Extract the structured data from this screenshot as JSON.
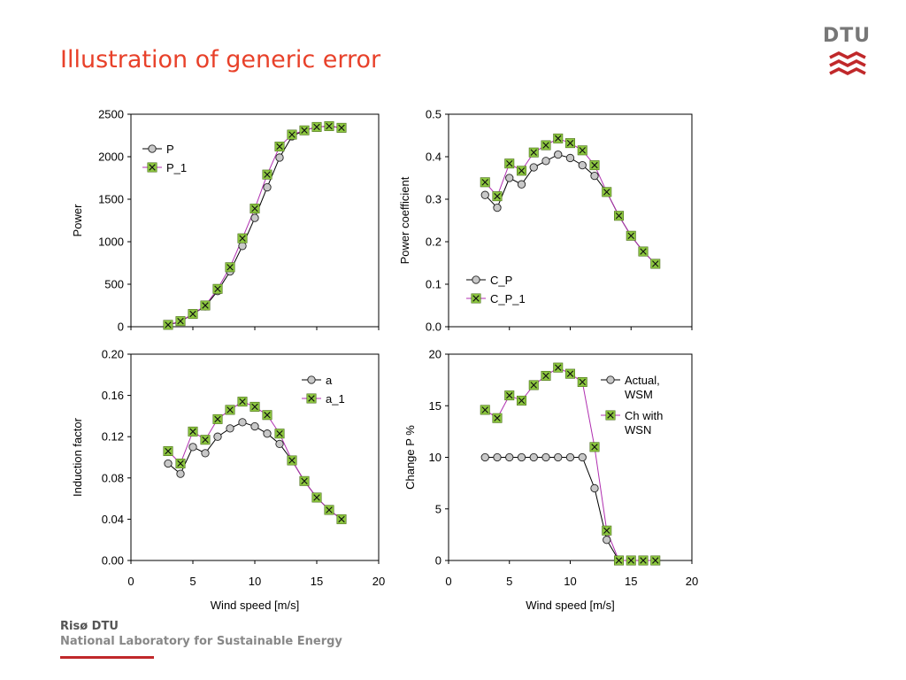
{
  "slide": {
    "title": "Illustration of generic error",
    "logo_text": "DTU",
    "footer_line1": "Risø DTU",
    "footer_line2": "National Laboratory for Sustainable Energy"
  },
  "colors": {
    "title": "#e8412a",
    "series_base_marker": "#c8c8c8",
    "series_alt_marker": "#8cc63f",
    "series_alt_line": "#b02fb0",
    "logo_red": "#c0282a"
  },
  "icons": {
    "logo": "dtu-logo-icon"
  },
  "chart_data": [
    {
      "type": "line",
      "ylabel": "Power",
      "xlabel": "",
      "xlim": [
        0,
        20
      ],
      "ylim": [
        0,
        2500
      ],
      "xticks": [],
      "yticks": [
        "0",
        "500",
        "1000",
        "1500",
        "2000",
        "2500"
      ],
      "legend_placement": "top-left",
      "series": [
        {
          "name": "P",
          "x": [
            3,
            4,
            5,
            6,
            7,
            8,
            9,
            10,
            11,
            12,
            13,
            14,
            15,
            16,
            17
          ],
          "y": [
            20,
            60,
            150,
            240,
            420,
            650,
            950,
            1280,
            1640,
            1990,
            2240,
            2310,
            2350,
            2360,
            2340
          ]
        },
        {
          "name": "P_1",
          "x": [
            3,
            4,
            5,
            6,
            7,
            8,
            9,
            10,
            11,
            12,
            13,
            14,
            15,
            16,
            17
          ],
          "y": [
            22,
            66,
            150,
            250,
            445,
            700,
            1040,
            1390,
            1790,
            2120,
            2260,
            2310,
            2350,
            2360,
            2340
          ]
        }
      ]
    },
    {
      "type": "line",
      "ylabel": "Power coefficient",
      "xlabel": "",
      "xlim": [
        0,
        20
      ],
      "ylim": [
        0,
        0.5
      ],
      "xticks": [],
      "yticks": [
        "0.0",
        "0.1",
        "0.2",
        "0.3",
        "0.4",
        "0.5"
      ],
      "legend_placement": "bottom-left",
      "series": [
        {
          "name": "C_P",
          "x": [
            3,
            4,
            5,
            6,
            7,
            8,
            9,
            10,
            11,
            12,
            13,
            14,
            15,
            16,
            17
          ],
          "y": [
            0.31,
            0.28,
            0.35,
            0.335,
            0.375,
            0.39,
            0.405,
            0.397,
            0.38,
            0.355,
            0.317,
            0.261,
            0.214,
            0.177,
            0.148
          ]
        },
        {
          "name": "C_P_1",
          "x": [
            3,
            4,
            5,
            6,
            7,
            8,
            9,
            10,
            11,
            12,
            13,
            14,
            15,
            16,
            17
          ],
          "y": [
            0.34,
            0.307,
            0.384,
            0.367,
            0.41,
            0.427,
            0.443,
            0.432,
            0.415,
            0.38,
            0.317,
            0.261,
            0.214,
            0.177,
            0.148
          ]
        }
      ]
    },
    {
      "type": "line",
      "ylabel": "Induction factor",
      "xlabel": "Wind speed [m/s]",
      "xlim": [
        0,
        20
      ],
      "ylim": [
        0,
        0.2
      ],
      "xticks": [
        "0",
        "5",
        "10",
        "15",
        "20"
      ],
      "yticks": [
        "0.00",
        "0.04",
        "0.08",
        "0.12",
        "0.16",
        "0.20"
      ],
      "legend_placement": "top-right",
      "series": [
        {
          "name": "a",
          "x": [
            3,
            4,
            5,
            6,
            7,
            8,
            9,
            10,
            11,
            12,
            13,
            14,
            15,
            16,
            17
          ],
          "y": [
            0.094,
            0.084,
            0.11,
            0.104,
            0.12,
            0.128,
            0.134,
            0.13,
            0.123,
            0.113,
            0.097,
            0.077,
            0.061,
            0.049,
            0.04
          ]
        },
        {
          "name": "a_1",
          "x": [
            3,
            4,
            5,
            6,
            7,
            8,
            9,
            10,
            11,
            12,
            13,
            14,
            15,
            16,
            17
          ],
          "y": [
            0.106,
            0.094,
            0.125,
            0.117,
            0.137,
            0.146,
            0.154,
            0.149,
            0.141,
            0.123,
            0.097,
            0.077,
            0.061,
            0.049,
            0.04
          ]
        }
      ]
    },
    {
      "type": "line",
      "ylabel": "Change P %",
      "xlabel": "Wind speed [m/s]",
      "xlim": [
        0,
        20
      ],
      "ylim": [
        0,
        20
      ],
      "xticks": [
        "0",
        "5",
        "10",
        "15",
        "20"
      ],
      "yticks": [
        "0",
        "5",
        "10",
        "15",
        "20"
      ],
      "legend_placement": "top-right",
      "series": [
        {
          "name": "Actual, WSM",
          "name_lines": [
            "Actual,",
            "WSM"
          ],
          "x": [
            3,
            4,
            5,
            6,
            7,
            8,
            9,
            10,
            11,
            12,
            13,
            14,
            15,
            16,
            17
          ],
          "y": [
            10,
            10,
            10,
            10,
            10,
            10,
            10,
            10,
            10,
            7,
            2,
            0,
            0,
            0,
            0
          ]
        },
        {
          "name": "Ch with WSN",
          "name_lines": [
            "Ch with",
            "WSN"
          ],
          "x": [
            3,
            4,
            5,
            6,
            7,
            8,
            9,
            10,
            11,
            12,
            13,
            14,
            15,
            16,
            17
          ],
          "y": [
            14.6,
            13.8,
            16,
            15.5,
            17,
            17.9,
            18.7,
            18.1,
            17.3,
            11,
            2.9,
            0,
            0,
            0,
            0
          ]
        }
      ]
    }
  ]
}
